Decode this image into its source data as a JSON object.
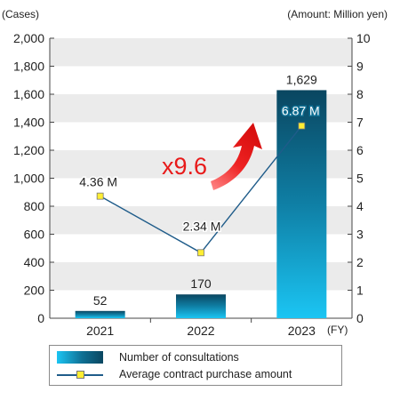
{
  "chart_data": {
    "type": "bar",
    "categories": [
      "2021",
      "2022",
      "2023"
    ],
    "x_unit": "(FY)",
    "series": [
      {
        "name": "Number of consultations",
        "axis": "left",
        "values": [
          52,
          170,
          1629
        ],
        "labels": [
          "52",
          "170",
          "1,629"
        ]
      },
      {
        "name": "Average contract purchase amount",
        "type": "line",
        "axis": "right",
        "values": [
          4.36,
          2.34,
          6.87
        ],
        "labels": [
          "4.36 M",
          "2.34 M",
          "6.87 M"
        ]
      }
    ],
    "y_left": {
      "unit": "(Cases)",
      "range": [
        0,
        2000
      ],
      "ticks": [
        "0",
        "200",
        "400",
        "600",
        "800",
        "1,000",
        "1,200",
        "1,400",
        "1,600",
        "1,800",
        "2,000"
      ]
    },
    "y_right": {
      "unit": "(Amount: Million yen)",
      "range": [
        0,
        10
      ],
      "ticks": [
        "0",
        "1",
        "2",
        "3",
        "4",
        "5",
        "6",
        "7",
        "8",
        "9",
        "10"
      ]
    },
    "annotation": "x9.6",
    "grid": "alternating horizontal bands",
    "legend_position": "bottom",
    "colors": {
      "bar_light": "#1bc5f3",
      "bar_dark": "#0a4660",
      "line": "#1f5c8a",
      "marker": "#ffee33",
      "arrow": "#e81a1a",
      "band": "#ebebeb"
    }
  }
}
